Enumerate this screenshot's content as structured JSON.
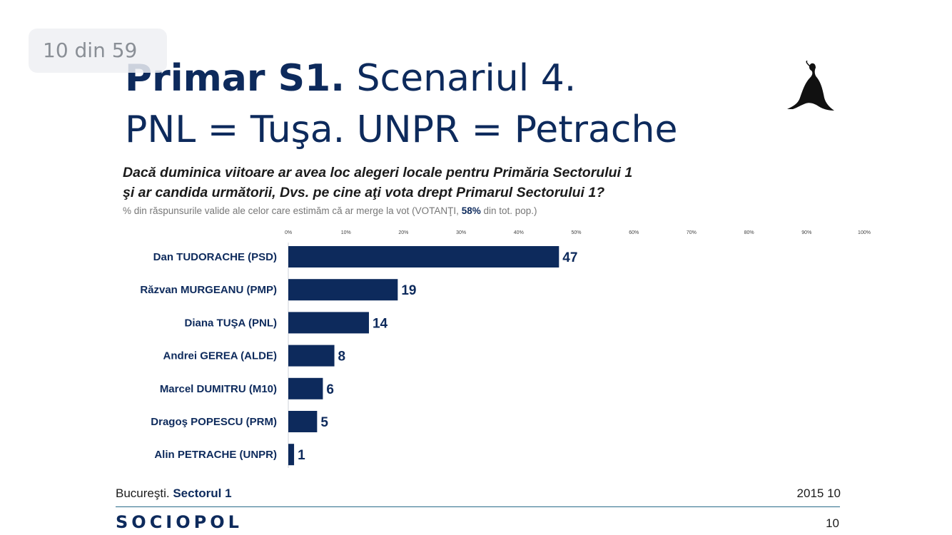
{
  "viewer": {
    "page_counter": "10 din 59"
  },
  "slide": {
    "title_bold": "Primar S1.",
    "title_rest": "Scenariul 4.",
    "title_line2": "PNL = Tuşa. UNPR = Petrache",
    "question_line1": "Dacă duminica viitoare ar avea loc alegeri locale pentru Primăria Sectorului 1",
    "question_line2": "şi ar candida următorii, Dvs. pe cine aţi vota drept Primarul Sectorului 1?",
    "subtitle_pre": "% din răspunsurile valide ale celor care estimăm că ar merge la vot (VOTANŢI, ",
    "subtitle_highlight": "58%",
    "subtitle_post": " din tot. pop.)",
    "footer_city": "Bucureşti.",
    "footer_sector": "Sectorul 1",
    "footer_date": "2015 10",
    "brand": "SOCIOPOL",
    "page_number": "10",
    "colors": {
      "bar": "#0d2a5c",
      "title": "#0d2a5c"
    }
  },
  "chart_data": {
    "type": "bar",
    "orientation": "horizontal",
    "categories": [
      "Dan TUDORACHE (PSD)",
      "Răzvan MURGEANU (PMP)",
      "Diana TUŞA (PNL)",
      "Andrei GEREA (ALDE)",
      "Marcel DUMITRU (M10)",
      "Dragoş POPESCU (PRM)",
      "Alin PETRACHE (UNPR)"
    ],
    "values": [
      47,
      19,
      14,
      8,
      6,
      5,
      1
    ],
    "xlim": [
      0,
      100
    ],
    "x_ticks": [
      "0%",
      "10%",
      "20%",
      "30%",
      "40%",
      "50%",
      "60%",
      "70%",
      "80%",
      "90%",
      "100%"
    ],
    "grid": false,
    "bar_color": "#0d2a5c"
  }
}
